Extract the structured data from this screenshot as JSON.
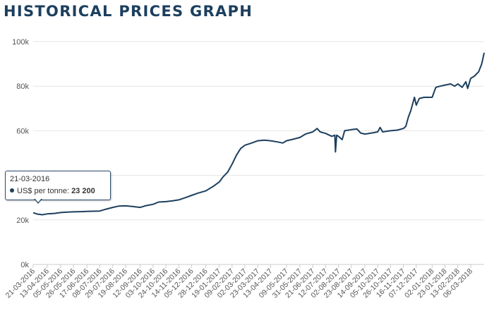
{
  "title": "HISTORICAL PRICES GRAPH",
  "colors": {
    "title": "#1d3f5e",
    "line": "#1d3f5e",
    "grid": "#e6e6e6",
    "axis_text": "#555555"
  },
  "tooltip": {
    "date": "21-03-2016",
    "series_label": "US$ per tonne:",
    "value": "23 200"
  },
  "chart_data": {
    "type": "line",
    "title": "",
    "xlabel": "",
    "ylabel": "",
    "ylim": [
      0,
      100000
    ],
    "y_ticks": [
      {
        "value": 0,
        "label": "0k"
      },
      {
        "value": 20000,
        "label": "20k"
      },
      {
        "value": 40000,
        "label": "40k"
      },
      {
        "value": 60000,
        "label": "60k"
      },
      {
        "value": 80000,
        "label": "80k"
      },
      {
        "value": 100000,
        "label": "100k"
      }
    ],
    "x_range": [
      "2016-03-21",
      "2018-03-28"
    ],
    "x_ticks": [
      "21-03-2016",
      "13-04-2016",
      "05-05-2016",
      "26-05-2016",
      "17-06-2016",
      "08-07-2016",
      "29-07-2016",
      "19-08-2016",
      "12-09-2016",
      "03-10-2016",
      "24-10-2016",
      "14-11-2016",
      "05-12-2016",
      "28-12-2016",
      "19-01-2017",
      "09-02-2017",
      "02-03-2017",
      "23-03-2017",
      "13-04-2017",
      "09-05-2017",
      "31-05-2017",
      "21-06-2017",
      "12-07-2017",
      "02-08-2017",
      "23-08-2017",
      "14-09-2017",
      "05-10-2017",
      "26-10-2017",
      "16-11-2017",
      "07-12-2017",
      "02-01-2018",
      "23-01-2018",
      "13-02-2018",
      "06-03-2018"
    ],
    "grid": true,
    "legend": "none",
    "series": [
      {
        "points": [
          [
            "2016-03-21",
            23200
          ],
          [
            "2016-03-28",
            22600
          ],
          [
            "2016-04-05",
            22300
          ],
          [
            "2016-04-13",
            22700
          ],
          [
            "2016-04-25",
            22900
          ],
          [
            "2016-05-05",
            23300
          ],
          [
            "2016-05-16",
            23500
          ],
          [
            "2016-05-26",
            23600
          ],
          [
            "2016-06-08",
            23700
          ],
          [
            "2016-06-17",
            23800
          ],
          [
            "2016-06-28",
            23900
          ],
          [
            "2016-07-08",
            24000
          ],
          [
            "2016-07-18",
            24800
          ],
          [
            "2016-07-29",
            25600
          ],
          [
            "2016-08-08",
            26200
          ],
          [
            "2016-08-19",
            26300
          ],
          [
            "2016-08-30",
            26000
          ],
          [
            "2016-09-12",
            25600
          ],
          [
            "2016-09-20",
            26300
          ],
          [
            "2016-10-03",
            27000
          ],
          [
            "2016-10-12",
            28000
          ],
          [
            "2016-10-24",
            28200
          ],
          [
            "2016-11-03",
            28500
          ],
          [
            "2016-11-14",
            29000
          ],
          [
            "2016-11-25",
            30000
          ],
          [
            "2016-12-05",
            31000
          ],
          [
            "2016-12-15",
            32000
          ],
          [
            "2016-12-28",
            33000
          ],
          [
            "2017-01-09",
            35000
          ],
          [
            "2017-01-19",
            37000
          ],
          [
            "2017-01-26",
            39500
          ],
          [
            "2017-02-02",
            41500
          ],
          [
            "2017-02-09",
            45000
          ],
          [
            "2017-02-16",
            49000
          ],
          [
            "2017-02-23",
            52000
          ],
          [
            "2017-03-02",
            53500
          ],
          [
            "2017-03-13",
            54500
          ],
          [
            "2017-03-23",
            55500
          ],
          [
            "2017-04-03",
            55800
          ],
          [
            "2017-04-13",
            55500
          ],
          [
            "2017-04-24",
            55000
          ],
          [
            "2017-05-03",
            54500
          ],
          [
            "2017-05-09",
            55500
          ],
          [
            "2017-05-20",
            56200
          ],
          [
            "2017-05-31",
            57000
          ],
          [
            "2017-06-09",
            58500
          ],
          [
            "2017-06-21",
            59500
          ],
          [
            "2017-06-28",
            61000
          ],
          [
            "2017-07-03",
            59500
          ],
          [
            "2017-07-12",
            58800
          ],
          [
            "2017-07-22",
            57500
          ],
          [
            "2017-07-27",
            58000
          ],
          [
            "2017-07-28",
            50500
          ],
          [
            "2017-07-30",
            58000
          ],
          [
            "2017-08-02",
            57500
          ],
          [
            "2017-08-08",
            56000
          ],
          [
            "2017-08-12",
            60000
          ],
          [
            "2017-08-23",
            60500
          ],
          [
            "2017-09-01",
            60800
          ],
          [
            "2017-09-07",
            59000
          ],
          [
            "2017-09-14",
            58500
          ],
          [
            "2017-09-25",
            59000
          ],
          [
            "2017-10-05",
            59500
          ],
          [
            "2017-10-09",
            61500
          ],
          [
            "2017-10-13",
            59500
          ],
          [
            "2017-10-26",
            60000
          ],
          [
            "2017-11-06",
            60300
          ],
          [
            "2017-11-16",
            61000
          ],
          [
            "2017-11-20",
            62000
          ],
          [
            "2017-11-24",
            66000
          ],
          [
            "2017-11-28",
            69000
          ],
          [
            "2017-12-01",
            72000
          ],
          [
            "2017-12-04",
            75000
          ],
          [
            "2017-12-07",
            71500
          ],
          [
            "2017-12-12",
            74500
          ],
          [
            "2017-12-20",
            75000
          ],
          [
            "2018-01-02",
            75000
          ],
          [
            "2018-01-08",
            79500
          ],
          [
            "2018-01-15",
            80000
          ],
          [
            "2018-01-23",
            80500
          ],
          [
            "2018-02-01",
            81000
          ],
          [
            "2018-02-08",
            80000
          ],
          [
            "2018-02-13",
            81000
          ],
          [
            "2018-02-20",
            79500
          ],
          [
            "2018-02-26",
            82000
          ],
          [
            "2018-03-01",
            79000
          ],
          [
            "2018-03-06",
            83500
          ],
          [
            "2018-03-12",
            84500
          ],
          [
            "2018-03-19",
            86500
          ],
          [
            "2018-03-24",
            90000
          ],
          [
            "2018-03-28",
            95000
          ]
        ]
      }
    ]
  }
}
